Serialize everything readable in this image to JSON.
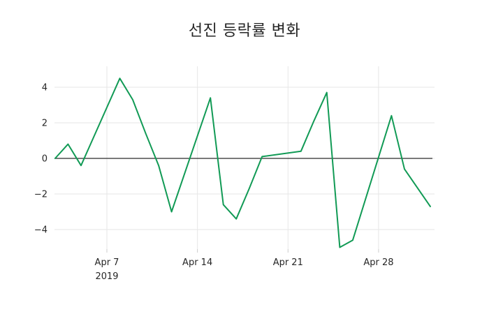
{
  "chart_data": {
    "type": "line",
    "title": "선진 등락률 변화",
    "xlabel": "",
    "ylabel": "",
    "grid": true,
    "zero_line": true,
    "legend": "none",
    "ylim": [
      -5.2,
      5.2
    ],
    "y_ticks": [
      4,
      2,
      0,
      -2,
      -4
    ],
    "y_tick_labels": [
      "4",
      "2",
      "0",
      "−2",
      "−4"
    ],
    "x_ticks": [
      {
        "date": "2019-04-07",
        "label": "Apr 7",
        "sublabel": "2019"
      },
      {
        "date": "2019-04-14",
        "label": "Apr 14",
        "sublabel": ""
      },
      {
        "date": "2019-04-21",
        "label": "Apr 21",
        "sublabel": ""
      },
      {
        "date": "2019-04-28",
        "label": "Apr 28",
        "sublabel": ""
      }
    ],
    "series": [
      {
        "name": "선진 등락률",
        "color": "#119a55",
        "x": [
          "2019-04-03",
          "2019-04-04",
          "2019-04-05",
          "2019-04-08",
          "2019-04-09",
          "2019-04-10",
          "2019-04-11",
          "2019-04-12",
          "2019-04-15",
          "2019-04-16",
          "2019-04-17",
          "2019-04-18",
          "2019-04-19",
          "2019-04-22",
          "2019-04-23",
          "2019-04-24",
          "2019-04-25",
          "2019-04-26",
          "2019-04-29",
          "2019-04-30",
          "2019-05-02"
        ],
        "values": [
          0.0,
          0.8,
          -0.4,
          4.5,
          3.3,
          1.4,
          -0.4,
          -3.0,
          3.4,
          -2.6,
          -3.4,
          -1.7,
          0.1,
          0.4,
          2.1,
          3.7,
          -5.0,
          -4.6,
          2.4,
          -0.6,
          -2.7
        ]
      }
    ],
    "colors": {
      "background": "#ffffff",
      "gridline": "#e6e6e6",
      "zero_line": "#2a2a2a",
      "tick_mark": "#cccccc",
      "tick_text": "#262626",
      "title_text": "#262626"
    }
  }
}
